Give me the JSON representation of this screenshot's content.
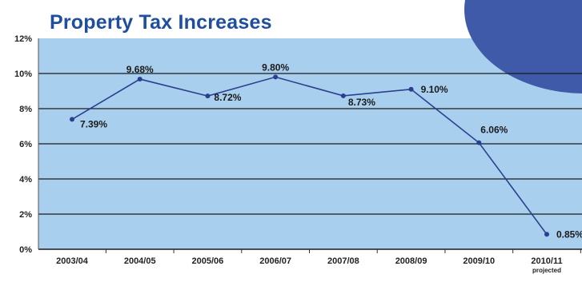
{
  "chart_data": {
    "type": "line",
    "title": "Property Tax Increases",
    "categories": [
      "2003/04",
      "2004/05",
      "2005/06",
      "2006/07",
      "2007/08",
      "2008/09",
      "2009/10",
      "2010/11"
    ],
    "category_notes": [
      "",
      "",
      "",
      "",
      "",
      "",
      "",
      "projected"
    ],
    "series": [
      {
        "values": [
          7.39,
          9.68,
          8.72,
          9.8,
          8.73,
          9.1,
          6.06,
          0.85
        ],
        "labels": [
          "7.39%",
          "9.68%",
          "8.72%",
          "9.80%",
          "8.73%",
          "9.10%",
          "6.06%",
          "0.85%"
        ]
      }
    ],
    "ylim": [
      0,
      12
    ],
    "yticks": [
      0,
      2,
      4,
      6,
      8,
      10,
      12
    ],
    "ytick_labels": [
      "0%",
      "2%",
      "4%",
      "6%",
      "8%",
      "10%",
      "12%"
    ],
    "grid": true,
    "legend": "none",
    "colors": {
      "line": "#2b3f8f",
      "plot_background": "#a9cfee",
      "gridline": "#1a1a1a",
      "title": "#1f4e9e",
      "accent_shape": "#3f5aa8"
    }
  }
}
